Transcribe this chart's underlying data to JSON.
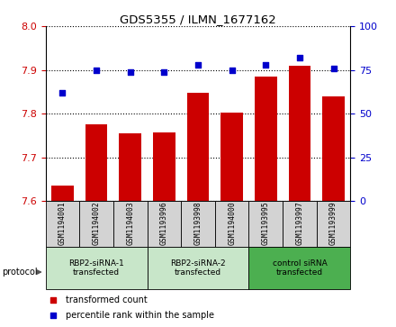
{
  "title": "GDS5355 / ILMN_1677162",
  "samples": [
    "GSM1194001",
    "GSM1194002",
    "GSM1194003",
    "GSM1193996",
    "GSM1193998",
    "GSM1194000",
    "GSM1193995",
    "GSM1193997",
    "GSM1193999"
  ],
  "bar_values": [
    7.635,
    7.775,
    7.755,
    7.758,
    7.848,
    7.803,
    7.885,
    7.91,
    7.84
  ],
  "dot_values": [
    62,
    75,
    74,
    74,
    78,
    75,
    78,
    82,
    76
  ],
  "ylim_left": [
    7.6,
    8.0
  ],
  "ylim_right": [
    0,
    100
  ],
  "yticks_left": [
    7.6,
    7.7,
    7.8,
    7.9,
    8.0
  ],
  "yticks_right": [
    0,
    25,
    50,
    75,
    100
  ],
  "bar_color": "#cc0000",
  "dot_color": "#0000cc",
  "group_colors": [
    "#c8e6c9",
    "#c8e6c9",
    "#4caf50"
  ],
  "group_labels": [
    "RBP2-siRNA-1\ntransfected",
    "RBP2-siRNA-2\ntransfected",
    "control siRNA\ntransfected"
  ],
  "group_ranges": [
    [
      0,
      2
    ],
    [
      3,
      5
    ],
    [
      6,
      8
    ]
  ],
  "protocol_label": "protocol",
  "legend_bar_label": "transformed count",
  "legend_dot_label": "percentile rank within the sample",
  "tick_label_color_left": "#cc0000",
  "tick_label_color_right": "#0000cc",
  "sample_box_color": "#d3d3d3"
}
